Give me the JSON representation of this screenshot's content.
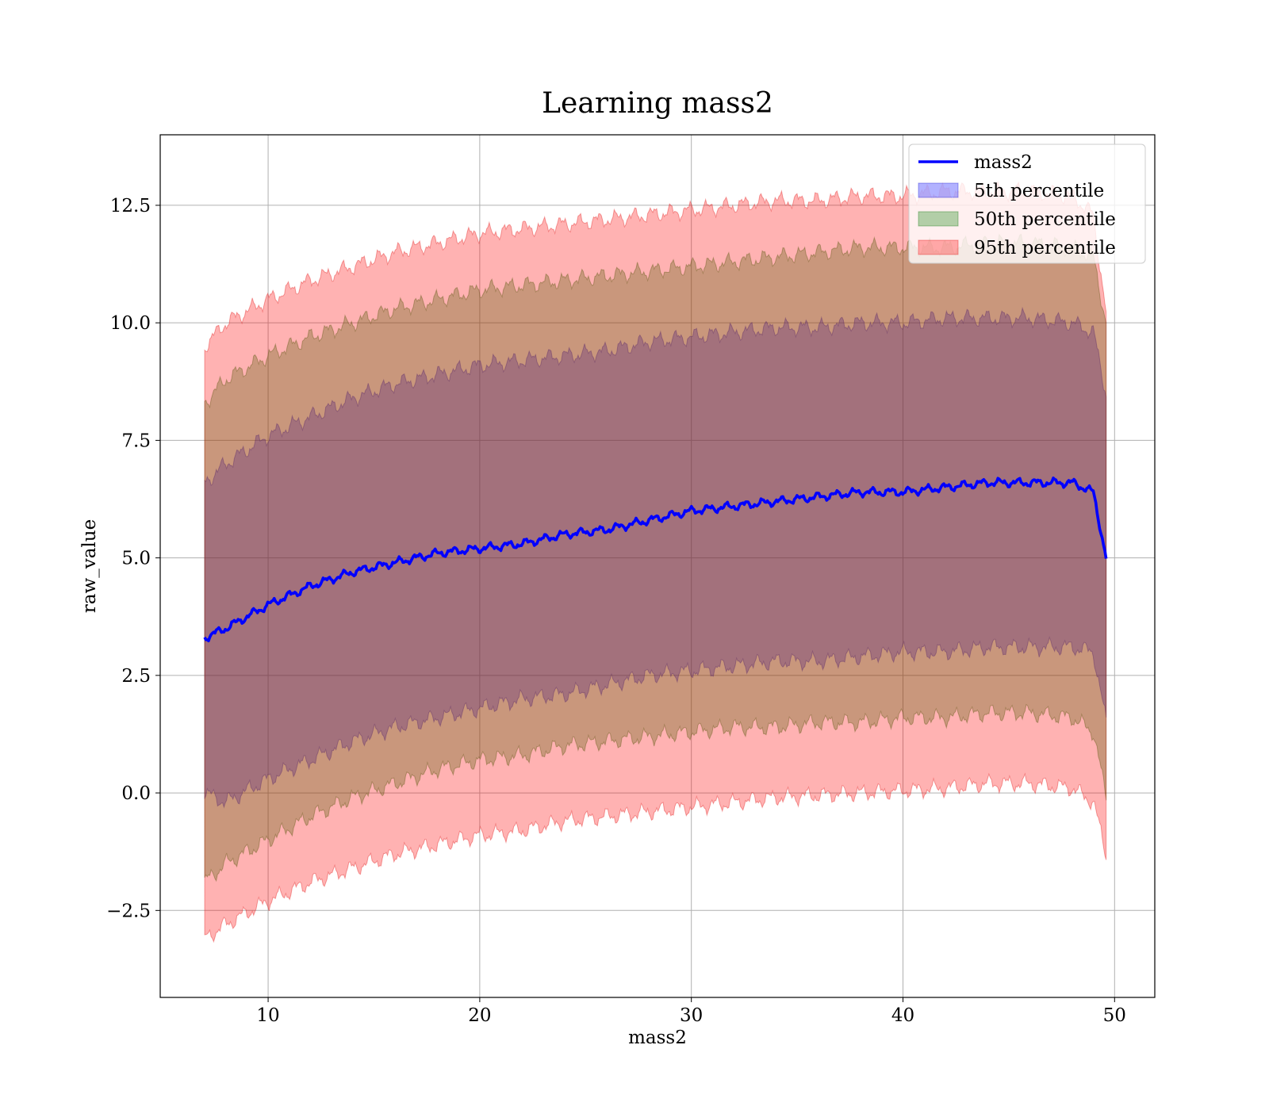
{
  "chart_data": {
    "type": "area",
    "title": "Learning mass2",
    "xlabel": "mass2",
    "ylabel": "raw_value",
    "xlim": [
      4.9,
      51.9
    ],
    "ylim": [
      -4.35,
      14.0
    ],
    "x_ticks": [
      10,
      20,
      30,
      40,
      50
    ],
    "y_ticks": [
      -2.5,
      0.0,
      2.5,
      5.0,
      7.5,
      10.0,
      12.5
    ],
    "x_tick_labels": [
      "10",
      "20",
      "30",
      "40",
      "50"
    ],
    "y_tick_labels": [
      "−2.5",
      "0.0",
      "2.5",
      "5.0",
      "7.5",
      "10.0",
      "12.5"
    ],
    "grid": true,
    "legend_position": "top-right",
    "x": [
      7.0,
      8,
      10,
      12,
      14,
      16,
      18,
      20,
      22,
      24,
      26,
      28,
      30,
      32,
      34,
      36,
      38,
      40,
      42,
      44,
      46,
      48,
      49.0,
      49.6
    ],
    "series": [
      {
        "name": "mass2",
        "kind": "line",
        "color": "#0000ff",
        "values": [
          3.3,
          3.5,
          4.0,
          4.4,
          4.7,
          4.9,
          5.1,
          5.2,
          5.3,
          5.5,
          5.6,
          5.8,
          6.0,
          6.1,
          6.2,
          6.3,
          6.4,
          6.4,
          6.5,
          6.6,
          6.6,
          6.6,
          6.4,
          5.0
        ]
      },
      {
        "name": "5th percentile",
        "kind": "band",
        "color": "#0000ff",
        "lower": [
          0.0,
          -0.2,
          0.3,
          0.7,
          1.1,
          1.4,
          1.6,
          1.8,
          2.0,
          2.1,
          2.3,
          2.5,
          2.6,
          2.7,
          2.8,
          2.8,
          2.9,
          3.0,
          3.0,
          3.1,
          3.1,
          3.1,
          3.0,
          1.5
        ],
        "upper": [
          6.6,
          7.0,
          7.6,
          8.0,
          8.4,
          8.7,
          8.9,
          9.1,
          9.2,
          9.3,
          9.4,
          9.6,
          9.7,
          9.8,
          9.9,
          9.9,
          10.0,
          10.0,
          10.1,
          10.1,
          10.1,
          10.0,
          9.8,
          8.5
        ]
      },
      {
        "name": "50th percentile",
        "kind": "band",
        "color": "#008000",
        "lower": [
          -1.9,
          -1.5,
          -1.0,
          -0.5,
          -0.1,
          0.2,
          0.5,
          0.7,
          0.8,
          1.0,
          1.1,
          1.2,
          1.3,
          1.4,
          1.4,
          1.5,
          1.5,
          1.6,
          1.6,
          1.7,
          1.7,
          1.6,
          1.3,
          -0.1
        ],
        "upper": [
          8.3,
          8.8,
          9.3,
          9.7,
          10.0,
          10.3,
          10.5,
          10.7,
          10.8,
          10.9,
          11.0,
          11.1,
          11.2,
          11.3,
          11.4,
          11.5,
          11.6,
          11.6,
          11.6,
          11.7,
          11.7,
          11.6,
          11.4,
          10.0
        ]
      },
      {
        "name": "95th percentile",
        "kind": "band",
        "color": "#ff0000",
        "lower": [
          -3.1,
          -2.8,
          -2.3,
          -1.9,
          -1.6,
          -1.3,
          -1.1,
          -0.9,
          -0.8,
          -0.6,
          -0.5,
          -0.4,
          -0.3,
          -0.2,
          -0.1,
          -0.05,
          0.0,
          0.05,
          0.1,
          0.2,
          0.2,
          0.1,
          -0.2,
          -1.3
        ],
        "upper": [
          9.5,
          10.0,
          10.5,
          10.9,
          11.2,
          11.5,
          11.7,
          11.9,
          12.0,
          12.1,
          12.2,
          12.3,
          12.4,
          12.5,
          12.6,
          12.6,
          12.7,
          12.7,
          12.8,
          12.8,
          12.8,
          12.7,
          12.3,
          10.2
        ]
      }
    ]
  }
}
